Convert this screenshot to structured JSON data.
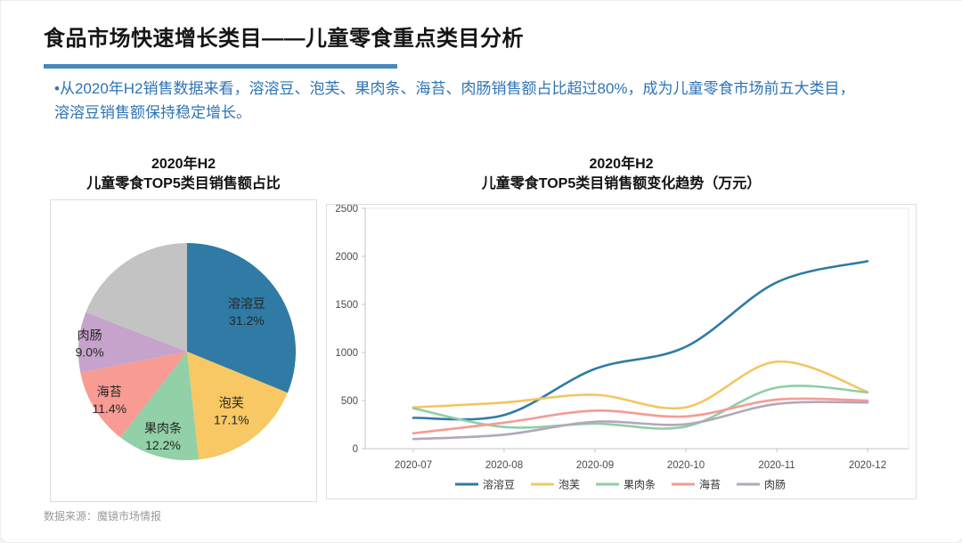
{
  "slide": {
    "title": "食品市场快速增长类目——儿童零食重点类目分析",
    "bullet_line1": "•从2020年H2销售数据来看，溶溶豆、泡芙、果肉条、海苔、肉肠销售额占比超过80%，成为儿童零食市场前五大类目，",
    "bullet_line2": "溶溶豆销售额保持稳定增长。",
    "source": "数据来源：魔镜市场情报",
    "accent_color": "#4789BC",
    "bullet_color": "#2E74B5"
  },
  "chart_data": [
    {
      "type": "pie",
      "title_line1": "2020年H2",
      "title_line2": "儿童零食TOP5类目销售额占比",
      "start_angle_deg": 0,
      "direction": "clockwise",
      "slices": [
        {
          "label": "溶溶豆",
          "pct_label": "31.2%",
          "value": 31.2,
          "color": "#2F7BA5"
        },
        {
          "label": "泡芙",
          "pct_label": "17.1%",
          "value": 17.1,
          "color": "#F7C863"
        },
        {
          "label": "果肉条",
          "pct_label": "12.2%",
          "value": 12.2,
          "color": "#92D0A7"
        },
        {
          "label": "海苔",
          "pct_label": "11.4%",
          "value": 11.4,
          "color": "#F79B93"
        },
        {
          "label": "肉肠",
          "pct_label": "9.0%",
          "value": 9.0,
          "color": "#C5A3CA"
        },
        {
          "label": "",
          "pct_label": "",
          "value": 19.1,
          "color": "#C3C3C3"
        }
      ],
      "label_color": "#262626"
    },
    {
      "type": "line",
      "title_line1": "2020年H2",
      "title_line2": "儿童零食TOP5类目销售额变化趋势（万元）",
      "x": [
        "2020-07",
        "2020-08",
        "2020-09",
        "2020-10",
        "2020-11",
        "2020-12"
      ],
      "ylim": [
        0,
        2500
      ],
      "yticks": [
        0,
        500,
        1000,
        1500,
        2000,
        2500
      ],
      "grid": false,
      "legend_position": "bottom",
      "series": [
        {
          "name": "溶溶豆",
          "color": "#2F7BA5",
          "values": [
            320,
            350,
            830,
            1060,
            1730,
            1950
          ]
        },
        {
          "name": "泡芙",
          "color": "#F2C661",
          "values": [
            430,
            480,
            560,
            430,
            905,
            590
          ]
        },
        {
          "name": "果肉条",
          "color": "#8FCEA6",
          "values": [
            420,
            225,
            260,
            230,
            635,
            585
          ]
        },
        {
          "name": "海苔",
          "color": "#F59B94",
          "values": [
            160,
            270,
            395,
            335,
            510,
            500
          ]
        },
        {
          "name": "肉肠",
          "color": "#B3A7B9",
          "values": [
            100,
            145,
            280,
            255,
            465,
            480
          ]
        }
      ],
      "axis_text_color": "#4a4a4a"
    }
  ]
}
